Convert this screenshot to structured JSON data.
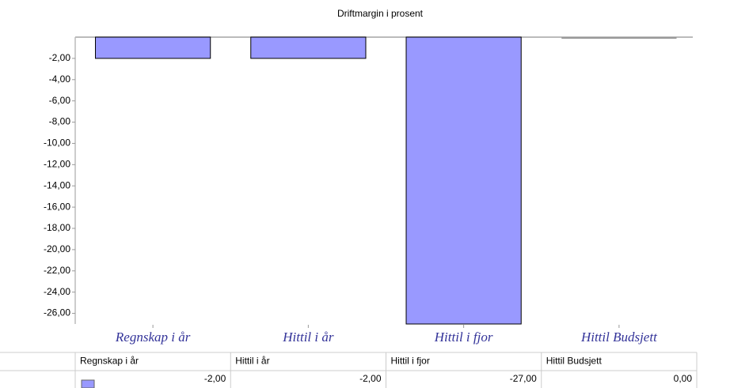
{
  "chart_data": {
    "type": "bar",
    "title": "Driftmargin i prosent",
    "categories": [
      "Regnskap i år",
      "Hittil i år",
      "Hittil i fjor",
      "Hittil Budsjett"
    ],
    "values": [
      -2,
      -2,
      -27,
      0
    ],
    "value_labels": [
      "-2,00",
      "-2,00",
      "-27,00",
      "0,00"
    ],
    "color": "#9999ff",
    "ylim": [
      -27,
      0
    ],
    "yticks": [
      {
        "value": -2,
        "label": "-2,00"
      },
      {
        "value": -4,
        "label": "-4,00"
      },
      {
        "value": -6,
        "label": "-6,00"
      },
      {
        "value": -8,
        "label": "-8,00"
      },
      {
        "value": -10,
        "label": "-10,00"
      },
      {
        "value": -12,
        "label": "-12,00"
      },
      {
        "value": -14,
        "label": "-14,00"
      },
      {
        "value": -16,
        "label": "-16,00"
      },
      {
        "value": -18,
        "label": "-18,00"
      },
      {
        "value": -20,
        "label": "-20,00"
      },
      {
        "value": -22,
        "label": "-22,00"
      },
      {
        "value": -24,
        "label": "-24,00"
      },
      {
        "value": -26,
        "label": "-26,00"
      }
    ],
    "grid": false
  }
}
